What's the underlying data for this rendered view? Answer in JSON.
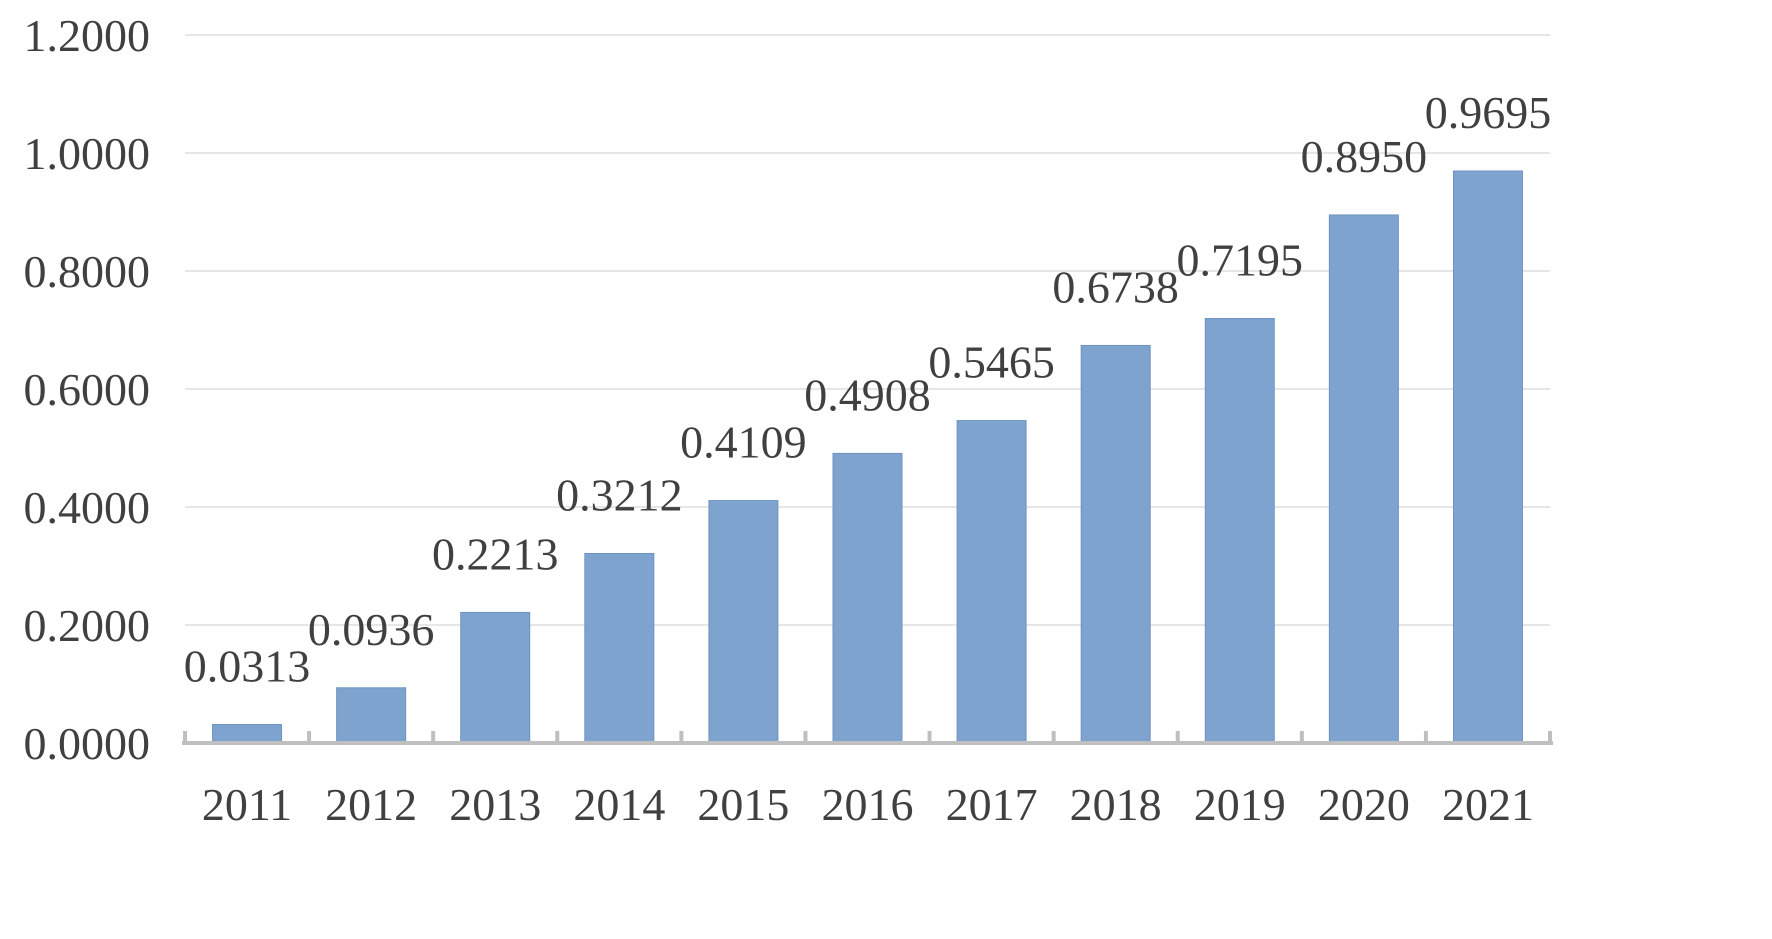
{
  "chart_data": {
    "type": "bar",
    "title": "",
    "xlabel": "",
    "ylabel": "",
    "categories": [
      "2011",
      "2012",
      "2013",
      "2014",
      "2015",
      "2016",
      "2017",
      "2018",
      "2019",
      "2020",
      "2021"
    ],
    "values": [
      0.0313,
      0.0936,
      0.2213,
      0.3212,
      0.4109,
      0.4908,
      0.5465,
      0.6738,
      0.7195,
      0.895,
      0.9695
    ],
    "value_labels": [
      "0.0313",
      "0.0936",
      "0.2213",
      "0.3212",
      "0.4109",
      "0.4908",
      "0.5465",
      "0.6738",
      "0.7195",
      "0.8950",
      "0.9695"
    ],
    "ylim": [
      0,
      1.2
    ],
    "yticks": [
      0,
      0.2,
      0.4,
      0.6,
      0.8,
      1.0,
      1.2
    ],
    "ytick_labels": [
      "0.0000",
      "0.2000",
      "0.4000",
      "0.6000",
      "0.8000",
      "1.0000",
      "1.2000"
    ],
    "grid": true,
    "legend": "none",
    "colors": {
      "bar": "#7fa3cf",
      "bar_border": "#6f93c0",
      "text": "#404040",
      "grid": "#e6e6e6",
      "axis": "#bfbfbf"
    }
  }
}
